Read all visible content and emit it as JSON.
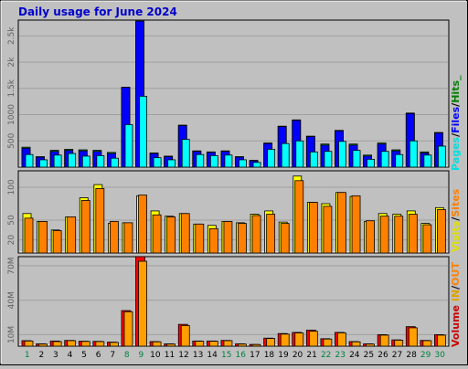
{
  "title": "Daily usage for June 2024",
  "colors": {
    "pages": "#00ffff",
    "files": "#0000ff",
    "hits": "#00c000",
    "visits": "#ffff00",
    "sites": "#ff8000",
    "kb_in": "#ff0000",
    "kb_out": "#ffa000",
    "volume_label": "#cc0000",
    "title": "#0000cc",
    "panel_bg": "#c0c0c0",
    "weekend_day": "#008040"
  },
  "legend": {
    "top": {
      "pages": "Pages",
      "sep1": "/",
      "files": "Files",
      "sep2": "/",
      "hits": "Hits_"
    },
    "middle": {
      "visits": "Visits",
      "sep": "/",
      "sites": "Sites"
    },
    "bottom": {
      "volume": "Volume",
      "in": "IN",
      "sep": "/",
      "out": "OUT"
    }
  },
  "chart_data": [
    {
      "type": "bar",
      "name": "hits-files-pages",
      "categories": [
        "1",
        "2",
        "3",
        "4",
        "5",
        "6",
        "7",
        "8",
        "9",
        "10",
        "11",
        "12",
        "13",
        "14",
        "15",
        "16",
        "17",
        "18",
        "19",
        "20",
        "21",
        "22",
        "23",
        "24",
        "25",
        "26",
        "27",
        "28",
        "29",
        "30"
      ],
      "weekend_days": [
        "1",
        "8",
        "9",
        "15",
        "16",
        "22",
        "23",
        "29",
        "30"
      ],
      "ytick_labels": [
        "500",
        "1000",
        "1.5k",
        "2k",
        "2.5k"
      ],
      "ytick_values": [
        500,
        1000,
        1500,
        2000,
        2500
      ],
      "ylim": [
        0,
        2800
      ],
      "series": [
        {
          "name": "Hits",
          "values": [
            380,
            200,
            320,
            340,
            330,
            320,
            280,
            1520,
            2780,
            270,
            210,
            800,
            310,
            290,
            310,
            200,
            130,
            460,
            780,
            900,
            590,
            440,
            700,
            440,
            230,
            460,
            330,
            1030,
            290,
            660
          ]
        },
        {
          "name": "Files",
          "values": [
            360,
            190,
            300,
            320,
            310,
            300,
            260,
            1520,
            2780,
            260,
            200,
            790,
            300,
            280,
            300,
            190,
            120,
            450,
            770,
            890,
            580,
            420,
            690,
            420,
            210,
            440,
            310,
            1020,
            270,
            650
          ]
        },
        {
          "name": "Pages",
          "values": [
            240,
            140,
            230,
            260,
            210,
            220,
            170,
            810,
            1350,
            180,
            140,
            530,
            240,
            220,
            230,
            140,
            90,
            340,
            450,
            500,
            290,
            300,
            490,
            320,
            150,
            300,
            240,
            500,
            230,
            400
          ]
        }
      ]
    },
    {
      "type": "bar",
      "name": "visits-sites",
      "categories": [
        "1",
        "2",
        "3",
        "4",
        "5",
        "6",
        "7",
        "8",
        "9",
        "10",
        "11",
        "12",
        "13",
        "14",
        "15",
        "16",
        "17",
        "18",
        "19",
        "20",
        "21",
        "22",
        "23",
        "24",
        "25",
        "26",
        "27",
        "28",
        "29",
        "30"
      ],
      "ytick_labels": [
        "20",
        "50",
        "100"
      ],
      "ytick_values": [
        20,
        50,
        100
      ],
      "ylim": [
        0,
        125
      ],
      "series": [
        {
          "name": "Visits",
          "values": [
            60,
            48,
            35,
            55,
            84,
            104,
            45,
            46,
            87,
            64,
            56,
            60,
            44,
            42,
            48,
            46,
            59,
            64,
            47,
            117,
            77,
            75,
            92,
            86,
            48,
            60,
            59,
            64,
            45,
            69
          ]
        },
        {
          "name": "Sites",
          "values": [
            53,
            48,
            34,
            55,
            80,
            98,
            48,
            46,
            88,
            58,
            55,
            60,
            44,
            37,
            48,
            45,
            57,
            59,
            45,
            110,
            77,
            71,
            92,
            87,
            49,
            56,
            56,
            59,
            43,
            66
          ]
        }
      ]
    },
    {
      "type": "bar",
      "name": "volume",
      "categories": [
        "1",
        "2",
        "3",
        "4",
        "5",
        "6",
        "7",
        "8",
        "9",
        "10",
        "11",
        "12",
        "13",
        "14",
        "15",
        "16",
        "17",
        "18",
        "19",
        "20",
        "21",
        "22",
        "23",
        "24",
        "25",
        "26",
        "27",
        "28",
        "29",
        "30"
      ],
      "ytick_labels": [
        "10M",
        "40M",
        "70M"
      ],
      "ytick_values": [
        10,
        40,
        70
      ],
      "ylim": [
        0,
        78
      ],
      "series": [
        {
          "name": "IN",
          "values": [
            4.8,
            2.0,
            4.5,
            5.0,
            4.3,
            4.2,
            3.5,
            31,
            78,
            4.0,
            2.0,
            19,
            4.5,
            4.5,
            5.0,
            2.0,
            1.5,
            7.0,
            11,
            12,
            14,
            6.5,
            12,
            4.0,
            2.0,
            10,
            5.5,
            17,
            5.0,
            10
          ]
        },
        {
          "name": "OUT",
          "values": [
            4.5,
            1.8,
            4.0,
            4.8,
            4.1,
            4.0,
            3.3,
            30,
            74,
            3.8,
            1.8,
            18,
            4.3,
            4.3,
            4.8,
            1.8,
            1.4,
            6.7,
            10.5,
            11.5,
            13,
            6.2,
            11.6,
            3.8,
            1.8,
            9.6,
            5.2,
            16,
            4.8,
            9.6
          ]
        }
      ]
    }
  ]
}
